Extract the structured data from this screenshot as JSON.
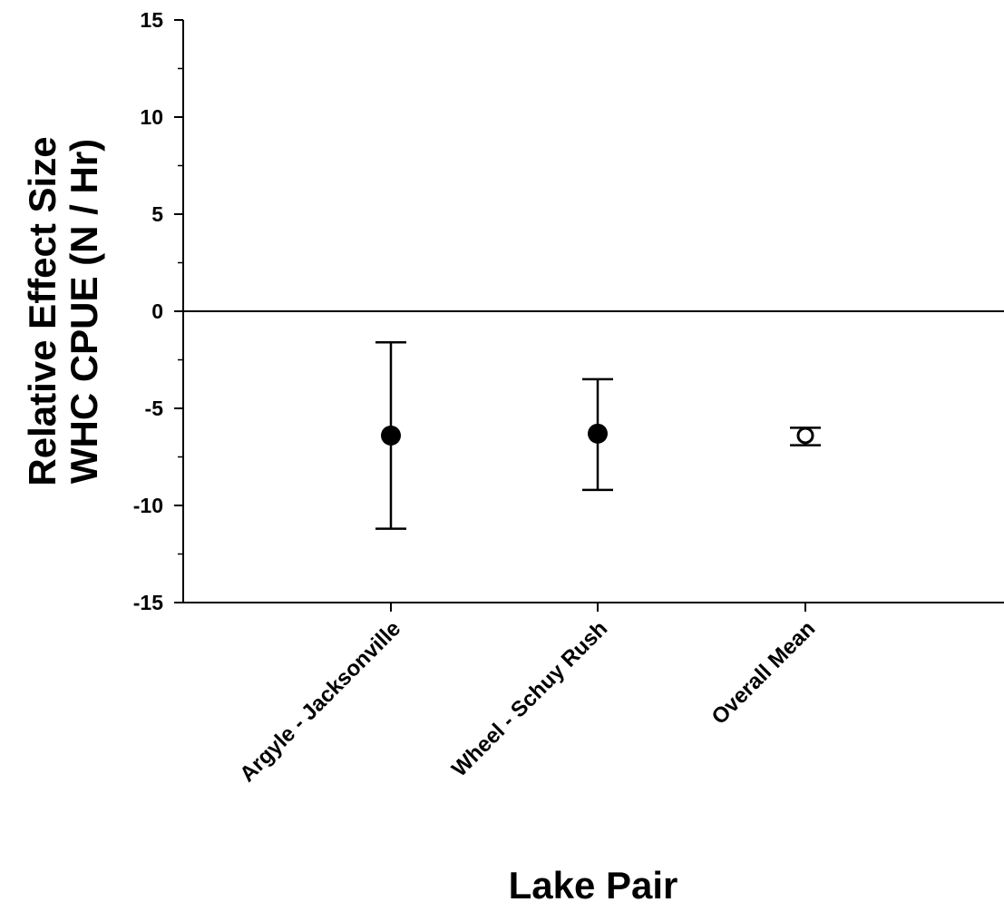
{
  "chart_data": {
    "type": "scatter",
    "xlabel": "Lake Pair",
    "ylabel_lines": [
      "Relative Effect Size",
      "WHC CPUE (N / Hr)"
    ],
    "ylim": [
      -15,
      15
    ],
    "y_major_ticks": [
      15,
      10,
      5,
      0,
      -5,
      -10,
      -15
    ],
    "y_tick_labels": [
      "15",
      "10",
      "5",
      "0",
      "-5",
      "-10",
      "-15"
    ],
    "y_minor_step": 2.5,
    "reference_line_y": 0,
    "categories": [
      "Argyle - Jacksonville",
      "Wheel - Schuy Rush",
      "Overall Mean"
    ],
    "points": [
      {
        "category": "Argyle - Jacksonville",
        "y": -6.4,
        "err_low": -11.2,
        "err_high": -1.6,
        "marker": "filled-circle"
      },
      {
        "category": "Wheel - Schuy Rush",
        "y": -6.3,
        "err_low": -9.2,
        "err_high": -3.5,
        "marker": "filled-circle"
      },
      {
        "category": "Overall Mean",
        "y": -6.4,
        "err_low": -6.9,
        "err_high": -6.0,
        "marker": "open-circle"
      }
    ],
    "legend": "none",
    "grid": false,
    "colors": {
      "marker": "#000000",
      "axis": "#000000",
      "background": "#ffffff"
    }
  }
}
